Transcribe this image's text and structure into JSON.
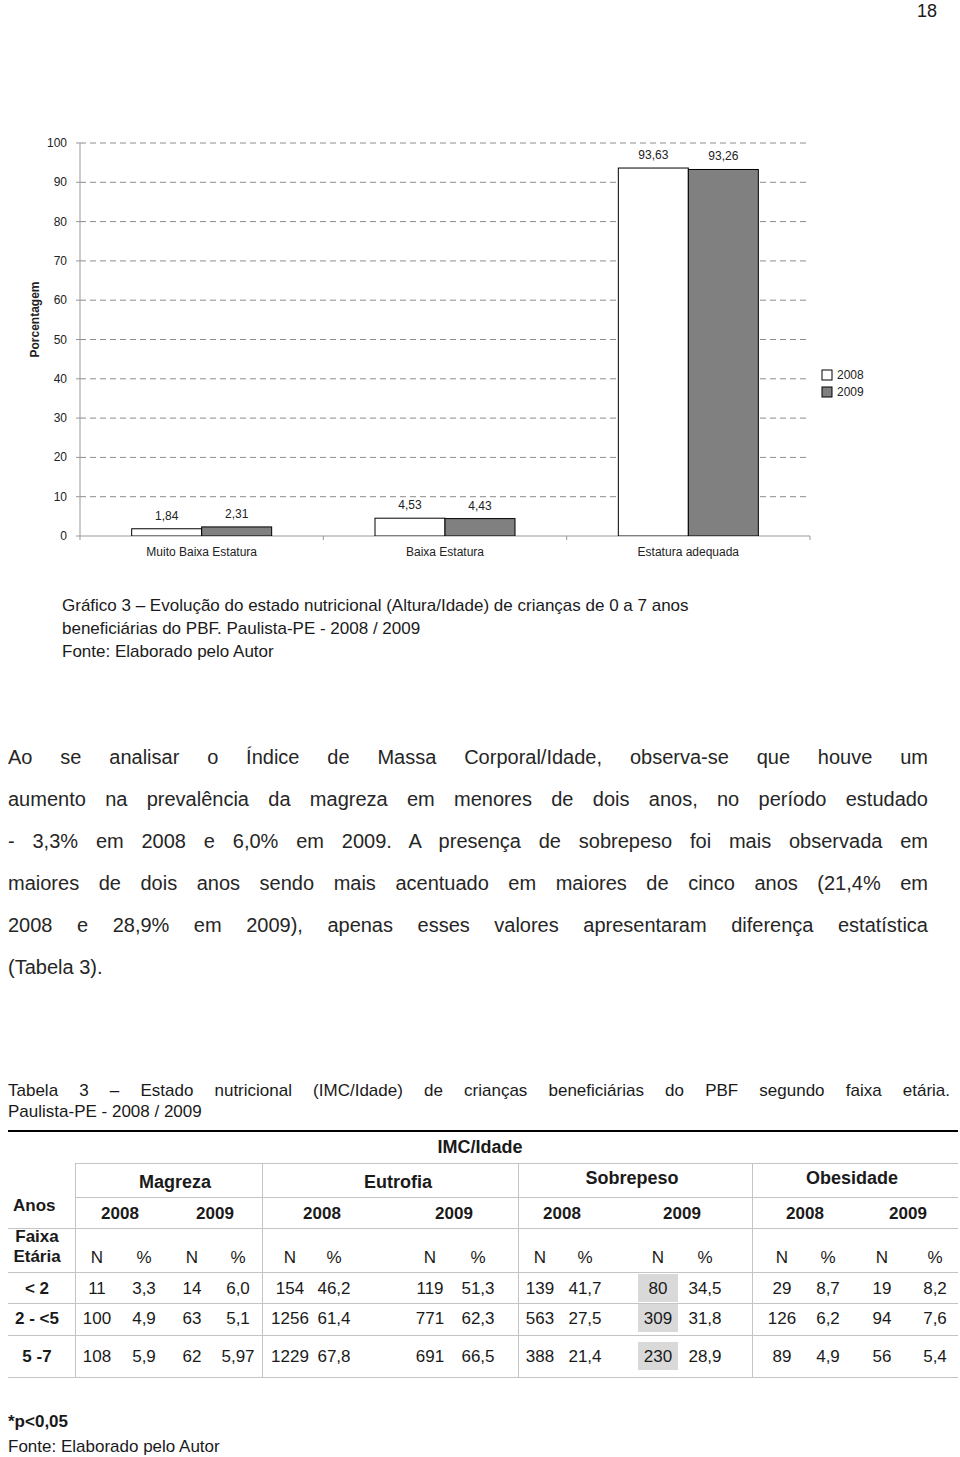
{
  "page_number": "18",
  "chart_data": {
    "type": "bar",
    "y_label": "Porcentagem",
    "categories": [
      "Muito Baixa Estatura",
      "Baixa Estatura",
      "Estatura adequada"
    ],
    "series": [
      {
        "name": "2008",
        "color": "#ffffff",
        "values": [
          1.84,
          4.53,
          93.63
        ],
        "value_labels": [
          "1,84",
          "4,53",
          "93,63"
        ]
      },
      {
        "name": "2009",
        "color": "#808080",
        "values": [
          2.31,
          4.43,
          93.26
        ],
        "value_labels": [
          "2,31",
          "4,43",
          "93,26"
        ]
      }
    ],
    "ylim": [
      0,
      100
    ],
    "yticks": [
      0,
      10,
      20,
      30,
      40,
      50,
      60,
      70,
      80,
      90,
      100
    ],
    "grid": true,
    "legend": "right",
    "data_labels": true
  },
  "chart_caption": {
    "lines": [
      "Gráfico 3 – Evolução do estado nutricional (Altura/Idade) de crianças de 0 a 7 anos",
      "beneficiárias do PBF. Paulista-PE - 2008 / 2009"
    ],
    "source": "Fonte: Elaborado pelo Autor"
  },
  "paragraph": [
    "Ao se analisar o Índice de Massa Corporal/Idade, observa-se que houve um",
    "aumento na prevalência da magreza em menores de dois anos, no período estudado",
    "- 3,3% em 2008 e 6,0% em 2009. A presença de sobrepeso foi mais observada em",
    "maiores de dois anos sendo mais acentuado em maiores de cinco anos (21,4% em",
    "2008 e 28,9% em 2009), apenas esses valores apresentaram diferença estatística",
    "(Tabela 3)."
  ],
  "table_caption": [
    "Tabela 3 – Estado nutricional (IMC/Idade) de crianças beneficiárias do PBF segundo faixa etária.",
    "Paulista-PE - 2008 / 2009"
  ],
  "table": {
    "title": "IMC/Idade",
    "row_header": "Anos",
    "row_header_2": "Faixa Etária",
    "groups": [
      "Magreza",
      "Eutrofia",
      "Sobrepeso",
      "Obesidade"
    ],
    "years": [
      "2008",
      "2009"
    ],
    "subcolumns": [
      "N",
      "%"
    ],
    "rows": [
      {
        "label": "< 2",
        "cells": [
          "11",
          "3,3",
          "14",
          "6,0",
          "154",
          "46,2",
          "119",
          "51,3",
          "139",
          "41,7",
          "80",
          "34,5",
          "29",
          "8,7",
          "19",
          "8,2"
        ]
      },
      {
        "label": "2 - <5",
        "cells": [
          "100",
          "4,9",
          "63",
          "5,1",
          "1256",
          "61,4",
          "771",
          "62,3",
          "563",
          "27,5",
          "309",
          "31,8",
          "126",
          "6,2",
          "94",
          "7,6"
        ]
      },
      {
        "label": "5 -7",
        "cells": [
          "108",
          "5,9",
          "62",
          "5,97",
          "1229",
          "67,8",
          "691",
          "66,5",
          "388",
          "21,4",
          "230",
          "28,9",
          "89",
          "4,9",
          "56",
          "5,4"
        ]
      }
    ],
    "note": "*p<0,05",
    "source": "Fonte: Elaborado pelo Autor"
  }
}
